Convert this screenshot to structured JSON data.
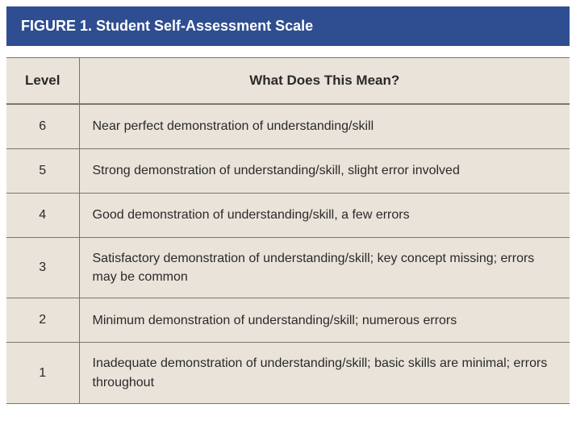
{
  "figure": {
    "title": "FIGURE 1. Student Self-Assessment Scale",
    "header_bg": "#2f4e91",
    "header_fg": "#ffffff",
    "table_bg": "#e9e3da",
    "border_color": "#7a766f",
    "text_color": "#2a2a2a",
    "columns": {
      "level": "Level",
      "meaning": "What Does This Mean?"
    },
    "rows": [
      {
        "level": "6",
        "meaning": "Near perfect demonstration of understanding/skill"
      },
      {
        "level": "5",
        "meaning": "Strong demonstration of understanding/skill, slight error involved"
      },
      {
        "level": "4",
        "meaning": "Good demonstration of understanding/skill, a few errors"
      },
      {
        "level": "3",
        "meaning": "Satisfactory demonstration of understanding/skill; key concept missing; errors may be common"
      },
      {
        "level": "2",
        "meaning": "Minimum demonstration of understanding/skill; numerous errors"
      },
      {
        "level": "1",
        "meaning": "Inadequate demonstration of understanding/skill; basic skills are minimal; errors throughout"
      }
    ]
  }
}
